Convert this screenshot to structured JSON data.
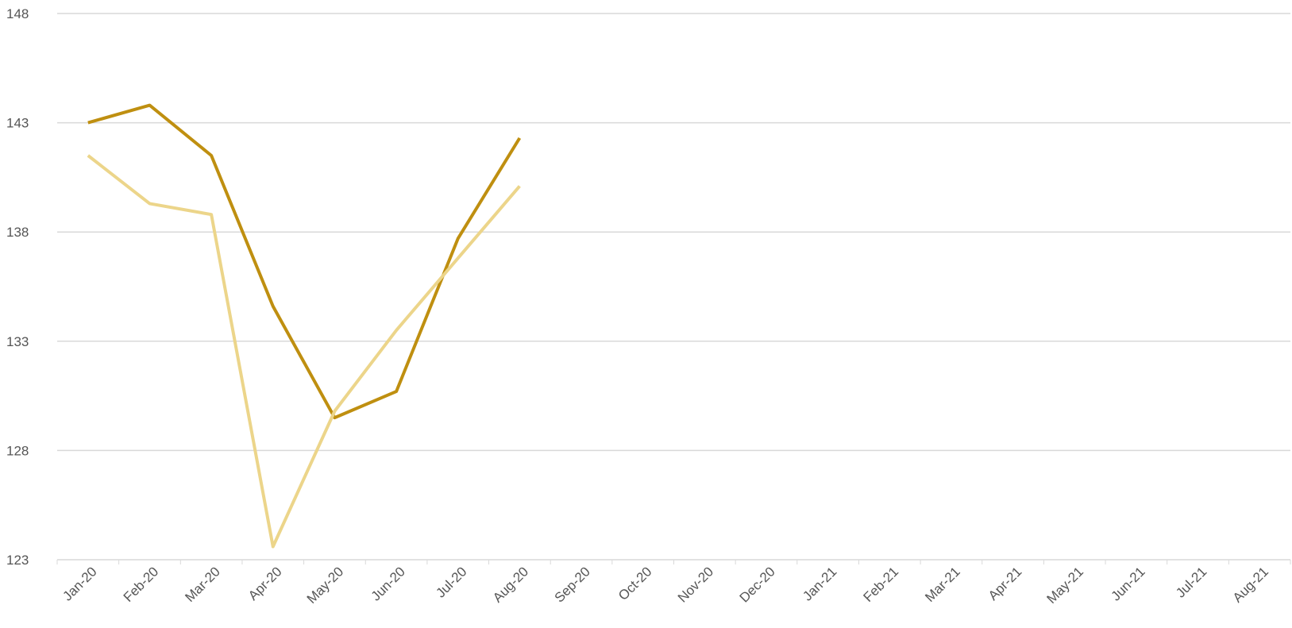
{
  "chart_data": {
    "type": "line",
    "categories": [
      "Jan-20",
      "Feb-20",
      "Mar-20",
      "Apr-20",
      "May-20",
      "Jun-20",
      "Jul-20",
      "Aug-20",
      "Sep-20",
      "Oct-20",
      "Nov-20",
      "Dec-20",
      "Jan-21",
      "Feb-21",
      "Mar-21",
      "Apr-21",
      "May-21",
      "Jun-21",
      "Jul-21",
      "Aug-21"
    ],
    "series": [
      {
        "color": "#bf8f10",
        "values": [
          143.0,
          143.8,
          141.5,
          134.6,
          129.5,
          130.7,
          137.7,
          142.3,
          null,
          null,
          null,
          null,
          null,
          null,
          null,
          null,
          null,
          null,
          null,
          null
        ]
      },
      {
        "color": "#ecd58a",
        "values": [
          141.5,
          139.3,
          138.8,
          123.6,
          129.8,
          133.5,
          136.8,
          140.1,
          null,
          null,
          null,
          null,
          null,
          null,
          null,
          null,
          null,
          null,
          null,
          null
        ]
      }
    ],
    "ylim": [
      123,
      148
    ],
    "yticks": [
      123,
      128,
      133,
      138,
      143,
      148
    ],
    "grid": true
  }
}
